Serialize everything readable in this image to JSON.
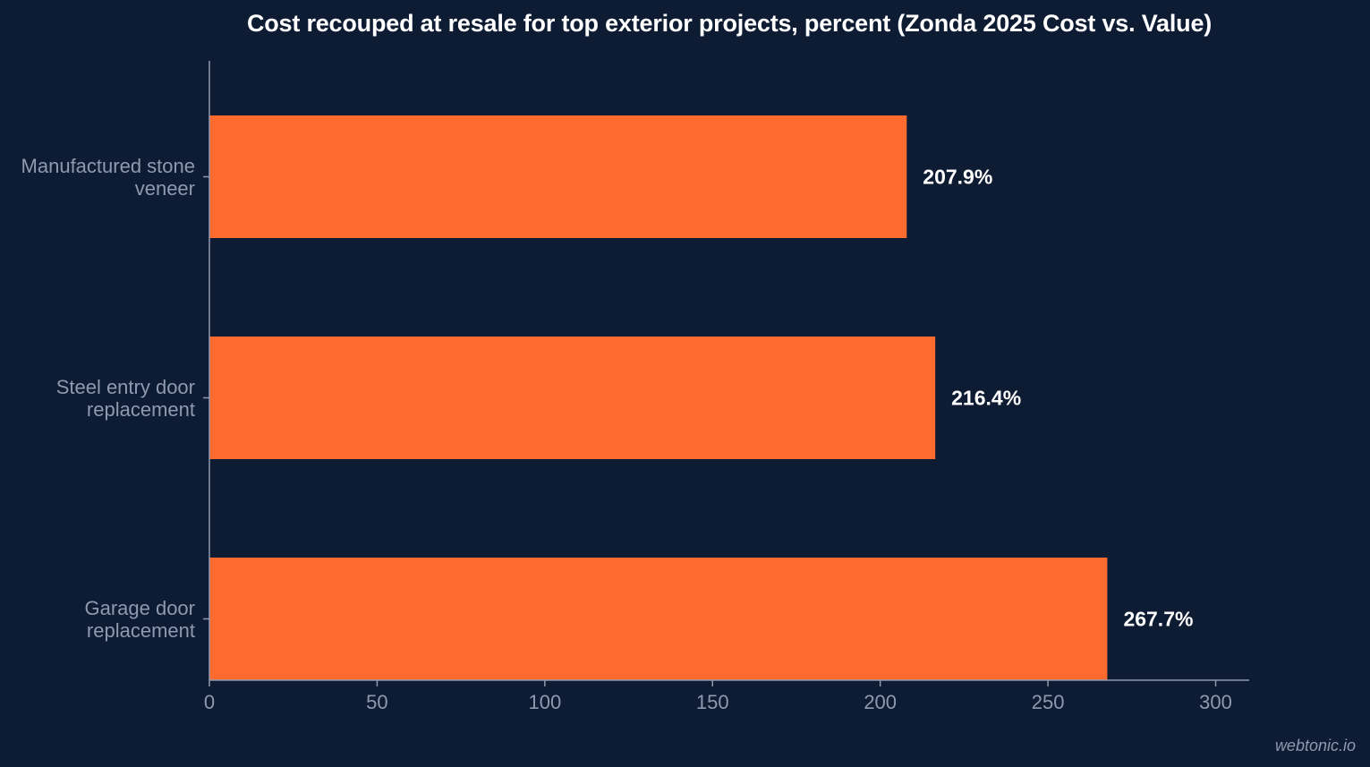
{
  "chart_data": {
    "type": "bar",
    "orientation": "horizontal",
    "title": "Cost recouped at resale for top exterior projects, percent (Zonda 2025 Cost vs. Value)",
    "categories": [
      "Manufactured stone veneer",
      "Steel entry door replacement",
      "Garage door replacement"
    ],
    "category_lines": [
      [
        "Manufactured stone",
        "veneer"
      ],
      [
        "Steel entry door",
        "replacement"
      ],
      [
        "Garage door",
        "replacement"
      ]
    ],
    "values": [
      207.9,
      216.4,
      267.7
    ],
    "value_labels": [
      "207.9%",
      "216.4%",
      "267.7%"
    ],
    "xlim": [
      0,
      310
    ],
    "xticks": [
      0,
      50,
      100,
      150,
      200,
      250,
      300
    ],
    "xlabel": "",
    "ylabel": "",
    "grid": false,
    "legend": "none"
  },
  "colors": {
    "background": "#0d1b33",
    "bar": "#ff6b2f",
    "axis": "#8d9ab0",
    "text": "#ffffff"
  },
  "watermark": "webtonic.io"
}
